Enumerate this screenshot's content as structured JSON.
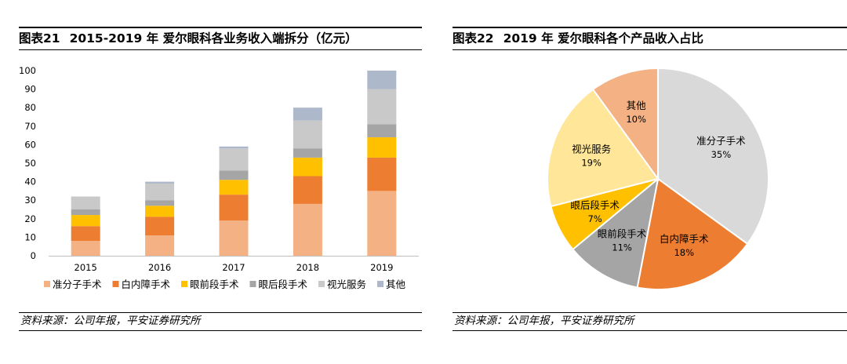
{
  "left": {
    "fig_num": "图表21",
    "fig_title": "2015-2019 年 爱尔眼科各业务收入端拆分（亿元）",
    "source": "资料来源：公司年报，平安证券研究所"
  },
  "right": {
    "fig_num": "图表22",
    "fig_title": "2019 年 爱尔眼科各个产品收入占比",
    "source": "资料来源：公司年报，平安证券研究所"
  },
  "chart_data": [
    {
      "type": "bar",
      "stacked": true,
      "categories": [
        "2015",
        "2016",
        "2017",
        "2018",
        "2019"
      ],
      "ylim": [
        0,
        100
      ],
      "yticks": [
        0,
        10,
        20,
        30,
        40,
        50,
        60,
        70,
        80,
        90,
        100
      ],
      "legend_position": "bottom",
      "grid": false,
      "series": [
        {
          "name": "准分子手术",
          "color": "#F4B183",
          "values": [
            8,
            11,
            19,
            28,
            35
          ]
        },
        {
          "name": "白内障手术",
          "color": "#ED7D31",
          "values": [
            8,
            10,
            14,
            15,
            18
          ]
        },
        {
          "name": "眼前段手术",
          "color": "#FFC000",
          "values": [
            6,
            6,
            8,
            10,
            11
          ]
        },
        {
          "name": "眼后段手术",
          "color": "#A5A5A5",
          "values": [
            3,
            3,
            5,
            5,
            7
          ]
        },
        {
          "name": "视光服务",
          "color": "#C9C9C9",
          "values": [
            7,
            9,
            12,
            15,
            19
          ]
        },
        {
          "name": "其他",
          "color": "#ADB9CA",
          "values": [
            0,
            1,
            1,
            7,
            10
          ]
        }
      ]
    },
    {
      "type": "pie",
      "slices": [
        {
          "label": "准分子手术",
          "pct": "35%",
          "value": 35,
          "color": "#D9D9D9"
        },
        {
          "label": "白内障手术",
          "pct": "18%",
          "value": 18,
          "color": "#ED7D31"
        },
        {
          "label": "眼前段手术",
          "pct": "11%",
          "value": 11,
          "color": "#A5A5A5"
        },
        {
          "label": "眼后段手术",
          "pct": "7%",
          "value": 7,
          "color": "#FFC000"
        },
        {
          "label": "视光服务",
          "pct": "19%",
          "value": 19,
          "color": "#FFE699"
        },
        {
          "label": "其他",
          "pct": "10%",
          "value": 10,
          "color": "#F4B183"
        }
      ]
    }
  ]
}
